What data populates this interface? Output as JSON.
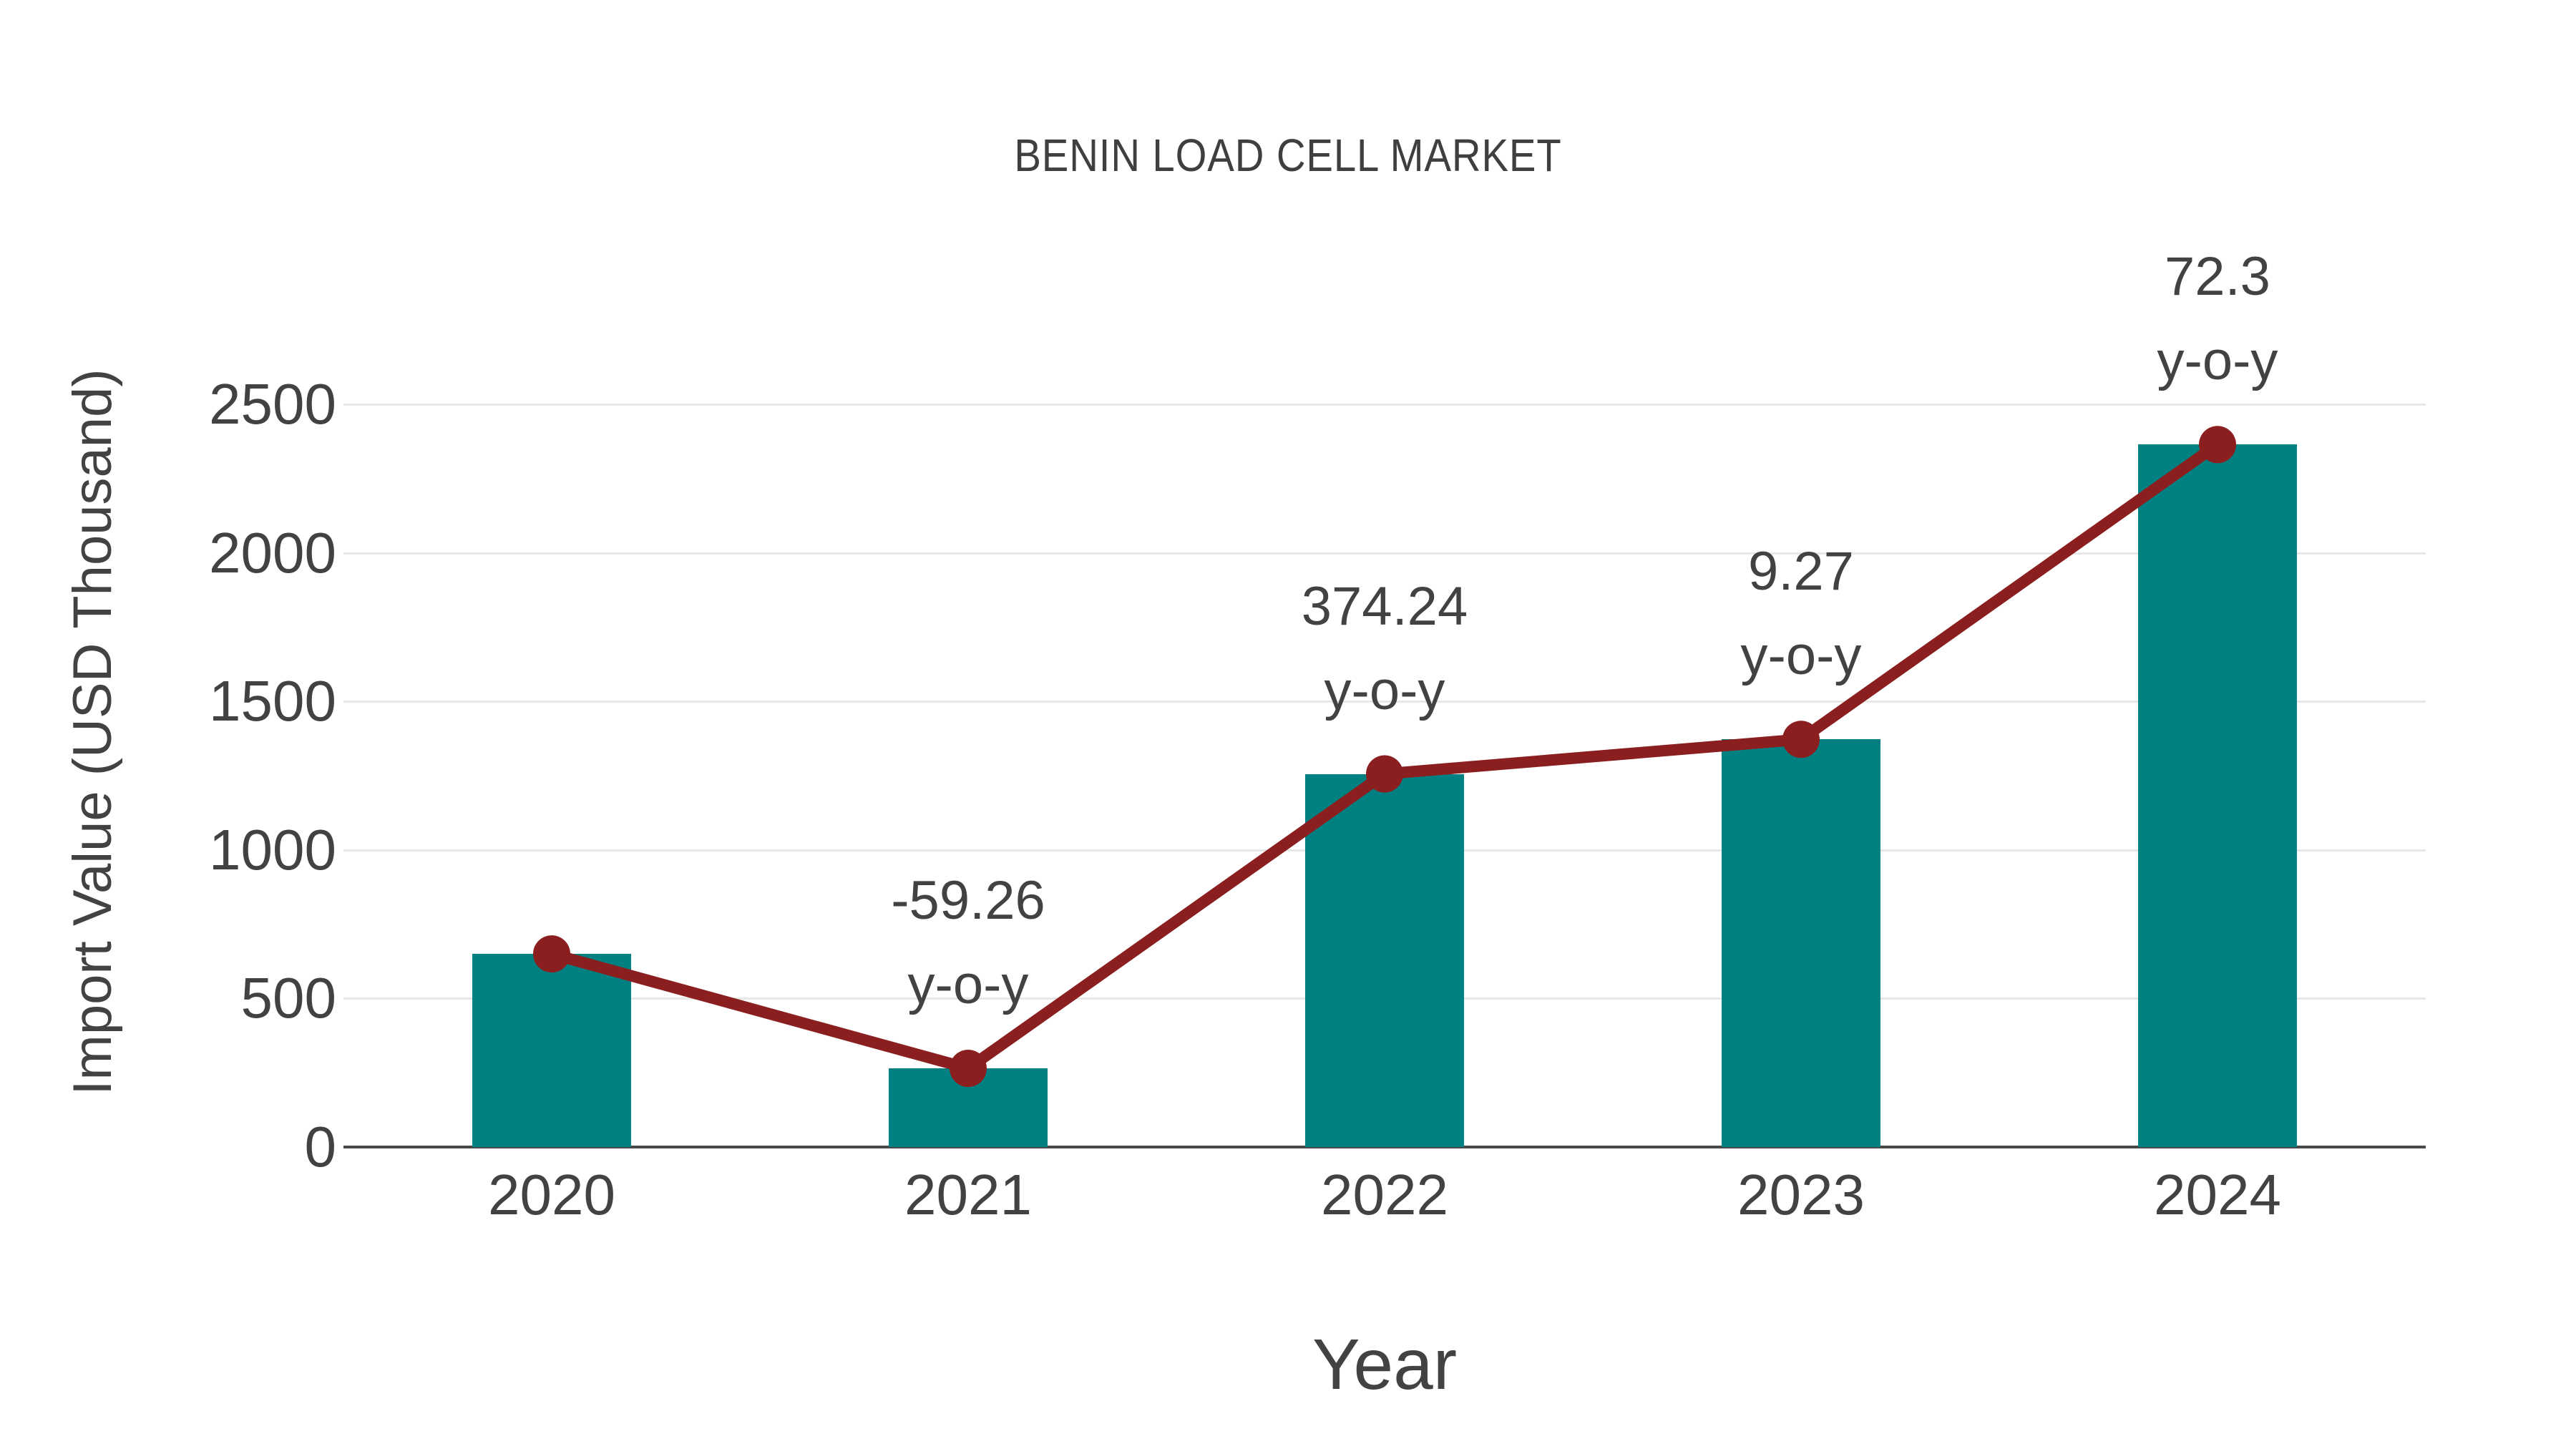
{
  "title": "BENIN LOAD CELL MARKET",
  "chart_data": {
    "type": "bar",
    "title": "BENIN LOAD CELL MARKET",
    "xlabel": "Year",
    "ylabel": "Import Value (USD Thousand)",
    "categories": [
      "2020",
      "2021",
      "2022",
      "2023",
      "2024"
    ],
    "series": [
      {
        "name": "Import Value bars",
        "type": "bar",
        "color": "#008080",
        "values": [
          650,
          264.8,
          1255.9,
          1372.3,
          2364.4
        ]
      },
      {
        "name": "Import Value trend line",
        "type": "line",
        "color": "#8b1f1f",
        "values": [
          650,
          264.8,
          1255.9,
          1372.3,
          2364.4
        ]
      }
    ],
    "annotations": [
      {
        "category": "2021",
        "line1": "-59.26",
        "line2": "y-o-y"
      },
      {
        "category": "2022",
        "line1": "374.24",
        "line2": "y-o-y"
      },
      {
        "category": "2023",
        "line1": "9.27",
        "line2": "y-o-y"
      },
      {
        "category": "2024",
        "line1": "72.3",
        "line2": "y-o-y"
      }
    ],
    "yticks": [
      "0",
      "500",
      "1000",
      "1500",
      "2000",
      "2500"
    ],
    "ytick_values": [
      0,
      500,
      1000,
      1500,
      2000,
      2500
    ],
    "ylim": [
      0,
      2500
    ],
    "grid": true,
    "legend_position": "none"
  },
  "colors": {
    "bar": "#008080",
    "line": "#8b1f1f",
    "text": "#424242",
    "grid": "#e8e8e8",
    "axis": "#4a4a4a",
    "background": "#ffffff"
  }
}
